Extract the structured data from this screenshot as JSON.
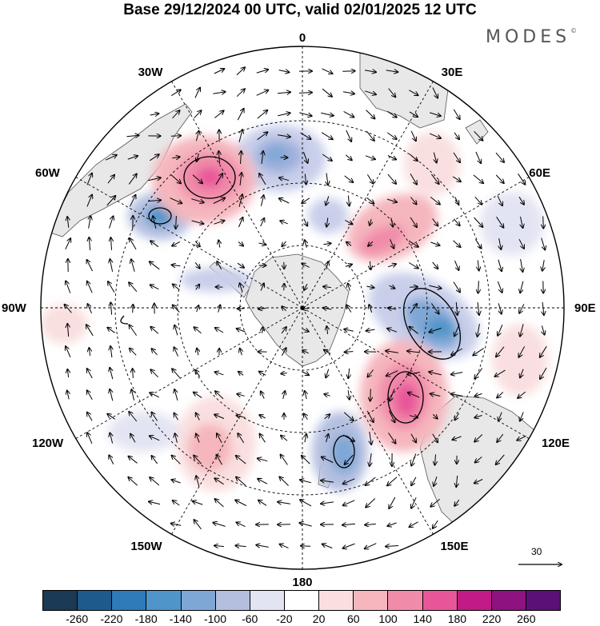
{
  "title": "Base 29/12/2024 00 UTC, valid 02/01/2025 12 UTC",
  "brand": "MODES",
  "brand_mark": "©",
  "longitude_labels": [
    "0",
    "30E",
    "60E",
    "90E",
    "120E",
    "150E",
    "180",
    "150W",
    "120W",
    "90W",
    "60W",
    "30W"
  ],
  "vector_scale_label": "30",
  "colorbar": {
    "colors": [
      "#1a3a55",
      "#1f5a8c",
      "#2f7ab8",
      "#4f95c9",
      "#7fa7d6",
      "#b4bfe0",
      "#e3e4f3",
      "#ffffff",
      "#f9dfdf",
      "#f5b6bd",
      "#f08caa",
      "#e8569a",
      "#c21a86",
      "#8e1280",
      "#5b1077"
    ],
    "tick_labels": [
      "-260",
      "-220",
      "-180",
      "-140",
      "-100",
      "-60",
      "-20",
      "20",
      "60",
      "100",
      "140",
      "180",
      "220",
      "260"
    ]
  },
  "colors": {
    "land": "#e8e8e8",
    "coastline": "#555555",
    "grid": "#000000"
  }
}
